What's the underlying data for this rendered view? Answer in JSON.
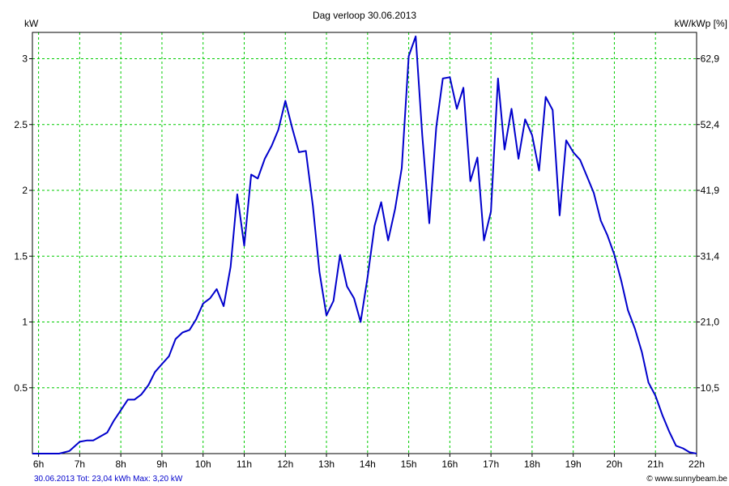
{
  "chart_data": {
    "type": "line",
    "title": "Dag  verloop 30.06.2013",
    "ylabel_left": "kW",
    "ylabel_right": "kW/kWp [%]",
    "x_tick_labels": [
      "6h",
      "7h",
      "8h",
      "9h",
      "10h",
      "11h",
      "12h",
      "13h",
      "14h",
      "15h",
      "16h",
      "17h",
      "18h",
      "19h",
      "20h",
      "21h",
      "22h"
    ],
    "x_tick_hours": [
      6,
      7,
      8,
      9,
      10,
      11,
      12,
      13,
      14,
      15,
      16,
      17,
      18,
      19,
      20,
      21,
      22
    ],
    "xlim": [
      5.85,
      22.0
    ],
    "ylim": [
      0,
      3.2
    ],
    "y_ticks": [
      0.5,
      1,
      1.5,
      2,
      2.5,
      3
    ],
    "y_tick_labels": [
      "0.5",
      "1",
      "1.5",
      "2",
      "2.5",
      "3"
    ],
    "y_right_tick_labels": [
      "10,5",
      "21,0",
      "31,4",
      "41,9",
      "52,4",
      "62,9"
    ],
    "grid": true,
    "line_color": "#0000cc",
    "grid_color": "#00cc00",
    "series": [
      {
        "x": [
          5.83,
          6.17,
          6.5,
          6.75,
          7.0,
          7.17,
          7.33,
          7.5,
          7.67,
          7.83,
          8.0,
          8.17,
          8.33,
          8.5,
          8.67,
          8.83,
          9.0,
          9.17,
          9.33,
          9.5,
          9.67,
          9.83,
          10.0,
          10.17,
          10.33,
          10.5,
          10.67,
          10.83,
          11.0,
          11.17,
          11.33,
          11.5,
          11.67,
          11.83,
          12.0,
          12.17,
          12.33,
          12.5,
          12.67,
          12.83,
          13.0,
          13.17,
          13.33,
          13.5,
          13.67,
          13.83,
          14.0,
          14.17,
          14.33,
          14.5,
          14.67,
          14.83,
          15.0,
          15.17,
          15.33,
          15.5,
          15.67,
          15.83,
          16.0,
          16.17,
          16.33,
          16.5,
          16.67,
          16.83,
          17.0,
          17.17,
          17.33,
          17.5,
          17.67,
          17.83,
          18.0,
          18.17,
          18.33,
          18.5,
          18.67,
          18.83,
          19.0,
          19.17,
          19.33,
          19.5,
          19.67,
          19.83,
          20.0,
          20.17,
          20.33,
          20.5,
          20.67,
          20.83,
          21.0,
          21.17,
          21.33,
          21.5,
          21.67,
          21.83,
          22.0
        ],
        "y": [
          0.0,
          0.0,
          0.0,
          0.02,
          0.09,
          0.1,
          0.1,
          0.13,
          0.16,
          0.25,
          0.33,
          0.41,
          0.41,
          0.45,
          0.52,
          0.62,
          0.68,
          0.74,
          0.87,
          0.92,
          0.94,
          1.02,
          1.14,
          1.18,
          1.25,
          1.12,
          1.42,
          1.97,
          1.58,
          2.12,
          2.09,
          2.24,
          2.34,
          2.46,
          2.68,
          2.47,
          2.29,
          2.3,
          1.88,
          1.38,
          1.05,
          1.16,
          1.51,
          1.27,
          1.18,
          1.0,
          1.34,
          1.73,
          1.91,
          1.62,
          1.86,
          2.17,
          3.02,
          3.17,
          2.42,
          1.75,
          2.48,
          2.85,
          2.86,
          2.62,
          2.78,
          2.07,
          2.25,
          1.62,
          1.84,
          2.85,
          2.31,
          2.62,
          2.24,
          2.54,
          2.42,
          2.15,
          2.71,
          2.61,
          1.81,
          2.38,
          2.29,
          2.23,
          2.11,
          1.98,
          1.77,
          1.66,
          1.51,
          1.31,
          1.09,
          0.95,
          0.77,
          0.54,
          0.44,
          0.29,
          0.17,
          0.06,
          0.04,
          0.01,
          0.0
        ]
      }
    ]
  },
  "footer": {
    "summary": "30.06.2013 Tot: 23,04 kWh Max: 3,20 kW",
    "credit": "© www.sunnybeam.be"
  }
}
